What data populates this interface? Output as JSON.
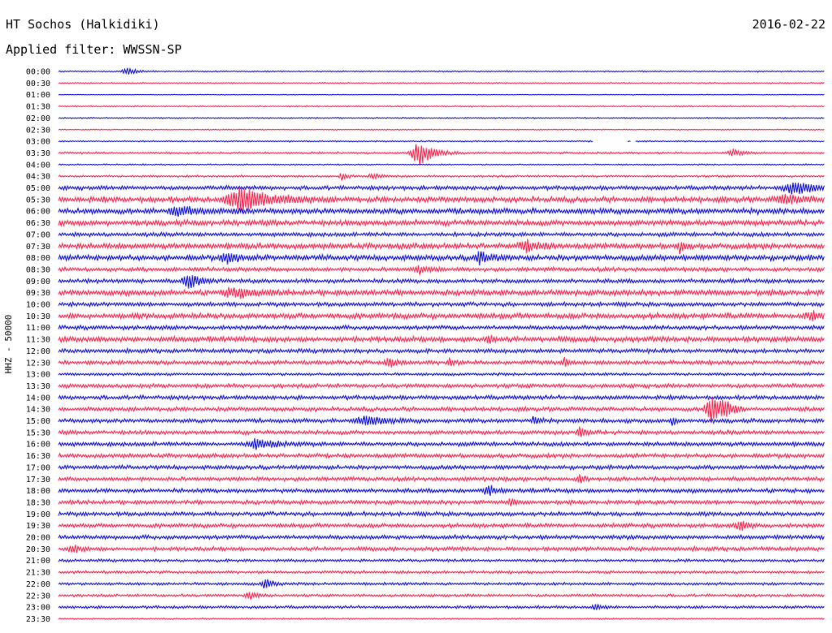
{
  "header": {
    "station": "HT Sochos (Halkidiki)",
    "date": "2016-02-22",
    "filter": "Applied filter: WWSSN-SP"
  },
  "chart_data": {
    "type": "line",
    "title": "HT Sochos (Halkidiki)",
    "ylabel": "HHZ - 50000",
    "xlabel": "",
    "colors": [
      "#0000dd",
      "#ff1744"
    ],
    "background": "#ffffff",
    "rows": [
      "00:00",
      "00:30",
      "01:00",
      "01:30",
      "02:00",
      "02:30",
      "03:00",
      "03:30",
      "04:00",
      "04:30",
      "05:00",
      "05:30",
      "06:00",
      "06:30",
      "07:00",
      "07:30",
      "08:00",
      "08:30",
      "09:00",
      "09:30",
      "10:00",
      "10:30",
      "11:00",
      "11:30",
      "12:00",
      "12:30",
      "13:00",
      "13:30",
      "14:00",
      "14:30",
      "15:00",
      "15:30",
      "16:00",
      "16:30",
      "17:00",
      "17:30",
      "18:00",
      "18:30",
      "19:00",
      "19:30",
      "20:00",
      "20:30",
      "21:00",
      "21:30",
      "22:00",
      "22:30",
      "23:00",
      "23:30"
    ],
    "noise_level": [
      1,
      1,
      0.5,
      1,
      1,
      0.8,
      1,
      1.5,
      1,
      1.5,
      3,
      4,
      4,
      4,
      3,
      4,
      4,
      3,
      3,
      4,
      3,
      4,
      3,
      4,
      3,
      3,
      2,
      3,
      3,
      3,
      3,
      3,
      3,
      3,
      3,
      3,
      3,
      3,
      3,
      3,
      3,
      3,
      2,
      2,
      2,
      2,
      2,
      1
    ],
    "events": [
      {
        "row": "00:00",
        "t": 0.09,
        "amp": 4,
        "width": 0.01
      },
      {
        "row": "03:30",
        "t": 0.47,
        "amp": 15,
        "width": 0.015
      },
      {
        "row": "03:30",
        "t": 0.88,
        "amp": 4,
        "width": 0.01
      },
      {
        "row": "04:30",
        "t": 0.37,
        "amp": 5,
        "width": 0.005
      },
      {
        "row": "04:30",
        "t": 0.41,
        "amp": 4,
        "width": 0.008
      },
      {
        "row": "05:30",
        "t": 0.24,
        "amp": 16,
        "width": 0.03
      },
      {
        "row": "05:30",
        "t": 0.95,
        "amp": 5,
        "width": 0.02
      },
      {
        "row": "05:00",
        "t": 0.96,
        "amp": 8,
        "width": 0.02
      },
      {
        "row": "06:00",
        "t": 0.16,
        "amp": 6,
        "width": 0.02
      },
      {
        "row": "07:30",
        "t": 0.61,
        "amp": 6,
        "width": 0.015
      },
      {
        "row": "07:30",
        "t": 0.81,
        "amp": 7,
        "width": 0.005
      },
      {
        "row": "08:00",
        "t": 0.22,
        "amp": 7,
        "width": 0.01
      },
      {
        "row": "08:00",
        "t": 0.55,
        "amp": 8,
        "width": 0.01
      },
      {
        "row": "08:30",
        "t": 0.47,
        "amp": 5,
        "width": 0.01
      },
      {
        "row": "09:00",
        "t": 0.17,
        "amp": 9,
        "width": 0.012
      },
      {
        "row": "09:30",
        "t": 0.23,
        "amp": 6,
        "width": 0.02
      },
      {
        "row": "10:30",
        "t": 0.98,
        "amp": 5,
        "width": 0.01
      },
      {
        "row": "11:30",
        "t": 0.56,
        "amp": 6,
        "width": 0.005
      },
      {
        "row": "12:30",
        "t": 0.43,
        "amp": 8,
        "width": 0.006
      },
      {
        "row": "12:30",
        "t": 0.51,
        "amp": 5,
        "width": 0.005
      },
      {
        "row": "12:30",
        "t": 0.66,
        "amp": 5,
        "width": 0.005
      },
      {
        "row": "14:30",
        "t": 0.85,
        "amp": 20,
        "width": 0.01
      },
      {
        "row": "14:30",
        "t": 0.87,
        "amp": 10,
        "width": 0.008
      },
      {
        "row": "15:00",
        "t": 0.4,
        "amp": 6,
        "width": 0.02
      },
      {
        "row": "15:00",
        "t": 0.62,
        "amp": 5,
        "width": 0.006
      },
      {
        "row": "15:00",
        "t": 0.8,
        "amp": 5,
        "width": 0.005
      },
      {
        "row": "15:30",
        "t": 0.68,
        "amp": 6,
        "width": 0.006
      },
      {
        "row": "16:00",
        "t": 0.26,
        "amp": 6,
        "width": 0.02
      },
      {
        "row": "17:30",
        "t": 0.68,
        "amp": 6,
        "width": 0.005
      },
      {
        "row": "18:00",
        "t": 0.56,
        "amp": 7,
        "width": 0.008
      },
      {
        "row": "18:30",
        "t": 0.59,
        "amp": 4,
        "width": 0.005
      },
      {
        "row": "19:30",
        "t": 0.89,
        "amp": 5,
        "width": 0.01
      },
      {
        "row": "20:30",
        "t": 0.02,
        "amp": 4,
        "width": 0.01
      },
      {
        "row": "22:00",
        "t": 0.27,
        "amp": 6,
        "width": 0.008
      },
      {
        "row": "22:30",
        "t": 0.25,
        "amp": 4,
        "width": 0.01
      },
      {
        "row": "23:00",
        "t": 0.7,
        "amp": 4,
        "width": 0.006
      }
    ],
    "gaps": [
      {
        "row": "03:00",
        "t_start": 0.698,
        "t_end": 0.742
      },
      {
        "row": "03:00",
        "t_end": 0.752,
        "t_start": 0.747
      }
    ]
  }
}
